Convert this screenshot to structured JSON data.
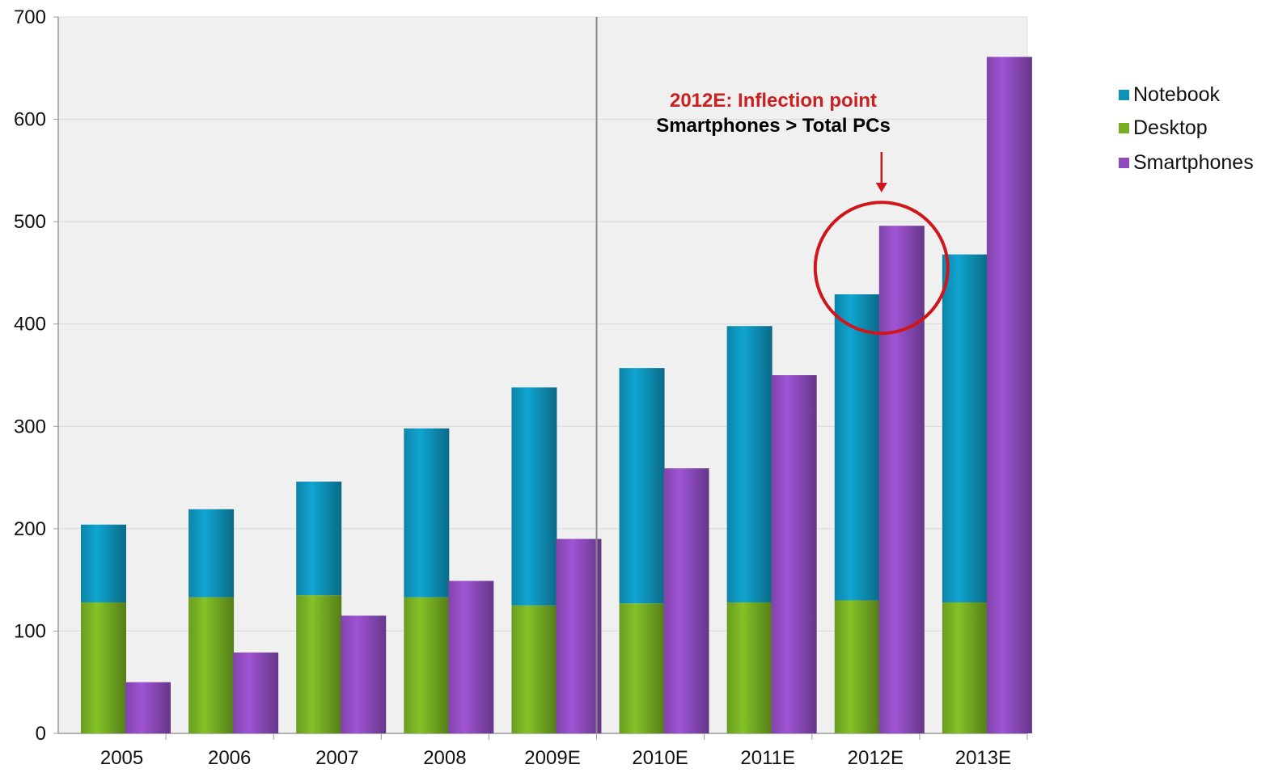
{
  "chart_data": {
    "type": "bar",
    "stacked_series": [
      "Desktop",
      "Notebook"
    ],
    "categories": [
      "2005",
      "2006",
      "2007",
      "2008",
      "2009E",
      "2010E",
      "2011E",
      "2012E",
      "2013E"
    ],
    "series": [
      {
        "name": "Notebook",
        "color": "#0e93bb",
        "values": [
          76,
          86,
          111,
          165,
          213,
          230,
          270,
          299,
          340
        ]
      },
      {
        "name": "Desktop",
        "color": "#76ad23",
        "values": [
          128,
          133,
          135,
          133,
          125,
          127,
          128,
          130,
          128
        ]
      },
      {
        "name": "Smartphones",
        "color": "#8e4bbd",
        "values": [
          50,
          79,
          115,
          149,
          190,
          259,
          350,
          496,
          661
        ]
      }
    ],
    "ylim": [
      0,
      700
    ],
    "yticks": [
      "0",
      "100",
      "200",
      "300",
      "400",
      "500",
      "600",
      "700"
    ],
    "title": "",
    "xlabel": "",
    "ylabel": "",
    "grid": true,
    "legend_position": "right",
    "divider_after_category": "2009E",
    "annotation": {
      "category": "2012E",
      "title": "2012E: Inflection point",
      "subtitle": "Smartphones > Total PCs",
      "title_color": "#cc1f1f",
      "circle_color": "#d0161a"
    }
  },
  "colors": {
    "plot_background": "#f0f0f0",
    "gridline": "#d8d8d8",
    "axis": "#9a9a9a"
  }
}
